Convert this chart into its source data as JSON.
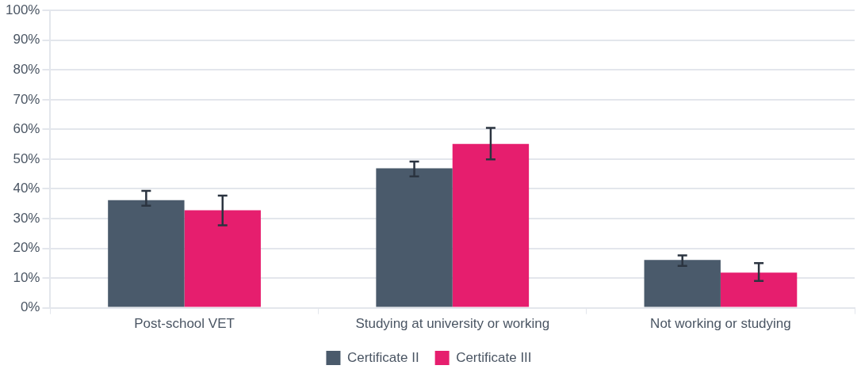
{
  "chart_data": {
    "type": "bar",
    "categories": [
      "Post-school VET",
      "Studying at university or working",
      "Not working or studying"
    ],
    "series": [
      {
        "name": "Certificate II",
        "color": "#4a5a6b",
        "values": [
          36.2,
          46.9,
          16.1
        ],
        "errors": [
          [
            34.3,
            39.3
          ],
          [
            44.2,
            49.2
          ],
          [
            14.1,
            17.6
          ]
        ]
      },
      {
        "name": "Certificate III",
        "color": "#e61e6e",
        "values": [
          32.8,
          55.1,
          11.8
        ],
        "errors": [
          [
            27.7,
            37.7
          ],
          [
            49.9,
            60.5
          ],
          [
            9.0,
            15.0
          ]
        ]
      }
    ],
    "ylim": [
      0,
      100
    ],
    "yticks": [
      {
        "value": 0,
        "label": "0%"
      },
      {
        "value": 10,
        "label": "10%"
      },
      {
        "value": 20,
        "label": "20%"
      },
      {
        "value": 30,
        "label": "30%"
      },
      {
        "value": 40,
        "label": "40%"
      },
      {
        "value": 50,
        "label": "50%"
      },
      {
        "value": 60,
        "label": "60%"
      },
      {
        "value": 70,
        "label": "70%"
      },
      {
        "value": 80,
        "label": "80%"
      },
      {
        "value": 90,
        "label": "90%"
      },
      {
        "value": 100,
        "label": "100%"
      }
    ],
    "grid": "y",
    "legend": "bottom"
  }
}
